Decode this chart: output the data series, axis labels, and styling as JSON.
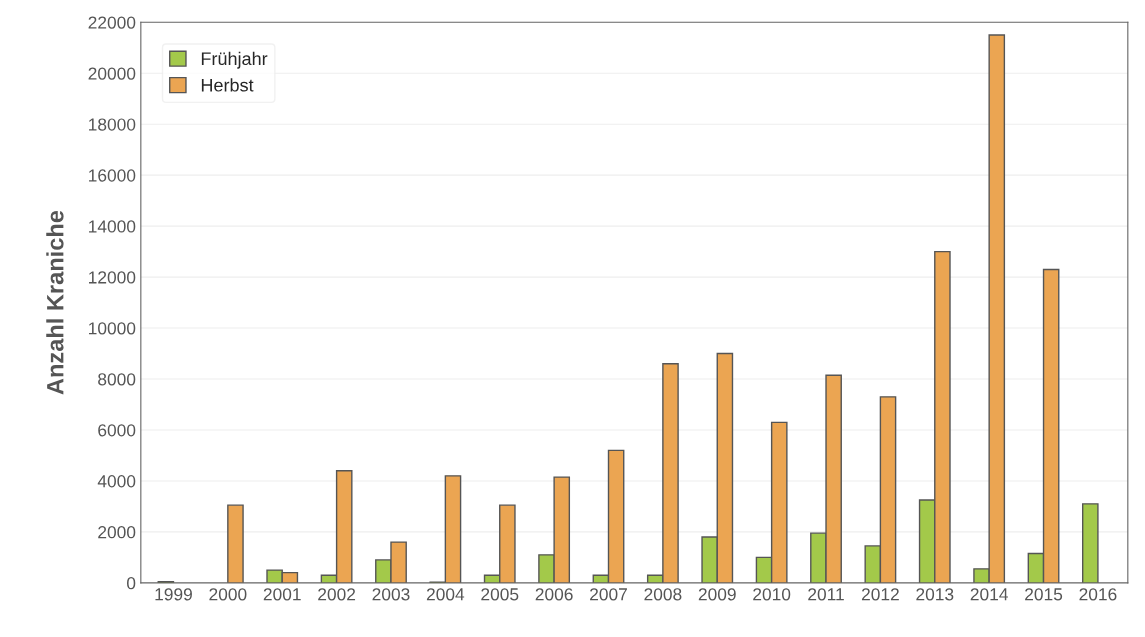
{
  "chart_data": {
    "type": "bar",
    "ylabel": "Anzahl Kraniche",
    "categories": [
      "1999",
      "2000",
      "2001",
      "2002",
      "2003",
      "2004",
      "2005",
      "2006",
      "2007",
      "2008",
      "2009",
      "2010",
      "2011",
      "2012",
      "2013",
      "2014",
      "2015",
      "2016"
    ],
    "series": [
      {
        "name": "Frühjahr",
        "color": "#a3c94a",
        "values": [
          50,
          null,
          500,
          300,
          900,
          30,
          300,
          1100,
          300,
          300,
          1800,
          1000,
          1950,
          1450,
          3250,
          550,
          1150,
          3100
        ]
      },
      {
        "name": "Herbst",
        "color": "#eba552",
        "values": [
          null,
          3050,
          400,
          4400,
          1600,
          4200,
          3050,
          4150,
          5200,
          8600,
          9000,
          6300,
          8150,
          7300,
          13000,
          21500,
          12300,
          null
        ]
      }
    ],
    "ylim": [
      0,
      22000
    ],
    "yticks": [
      0,
      2000,
      4000,
      6000,
      8000,
      10000,
      12000,
      14000,
      16000,
      18000,
      20000,
      22000
    ],
    "grid": "y",
    "legend": "top left"
  }
}
